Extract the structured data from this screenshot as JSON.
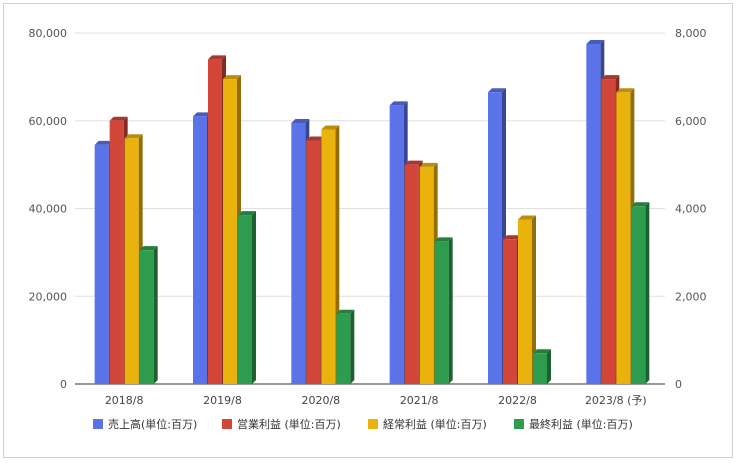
{
  "chart_data": {
    "type": "bar",
    "categories": [
      "2018/8",
      "2019/8",
      "2020/8",
      "2021/8",
      "2022/8",
      "2023/8 (予)"
    ],
    "series": [
      {
        "name": "売上高(単位:百万)",
        "axis": "left",
        "color": "#5b73e8",
        "values": [
          54500,
          61000,
          59500,
          63500,
          66500,
          77500
        ]
      },
      {
        "name": "営業利益 (単位:百万)",
        "axis": "right",
        "color": "#d2463a",
        "values": [
          6000,
          7400,
          5550,
          5000,
          3300,
          6950
        ]
      },
      {
        "name": "経常利益 (単位:百万)",
        "axis": "right",
        "color": "#eab20d",
        "values": [
          5600,
          6950,
          5800,
          4950,
          3750,
          6650
        ]
      },
      {
        "name": "最終利益 (単位:百万)",
        "axis": "right",
        "color": "#2e9c4e",
        "values": [
          3050,
          3850,
          1600,
          3250,
          700,
          4050
        ]
      }
    ],
    "y_left": {
      "ylim": [
        0,
        80000
      ],
      "ticks": [
        "0",
        "20,000",
        "40,000",
        "60,000",
        "80,000"
      ],
      "tick_values": [
        0,
        20000,
        40000,
        60000,
        80000
      ]
    },
    "y_right": {
      "ylim": [
        0,
        8000
      ],
      "ticks": [
        "0",
        "2,000",
        "4,000",
        "6,000",
        "8,000"
      ],
      "tick_values": [
        0,
        2000,
        4000,
        6000,
        8000
      ]
    },
    "grid": true,
    "legend_position": "bottom",
    "title": "",
    "xlabel": "",
    "ylabel": ""
  }
}
